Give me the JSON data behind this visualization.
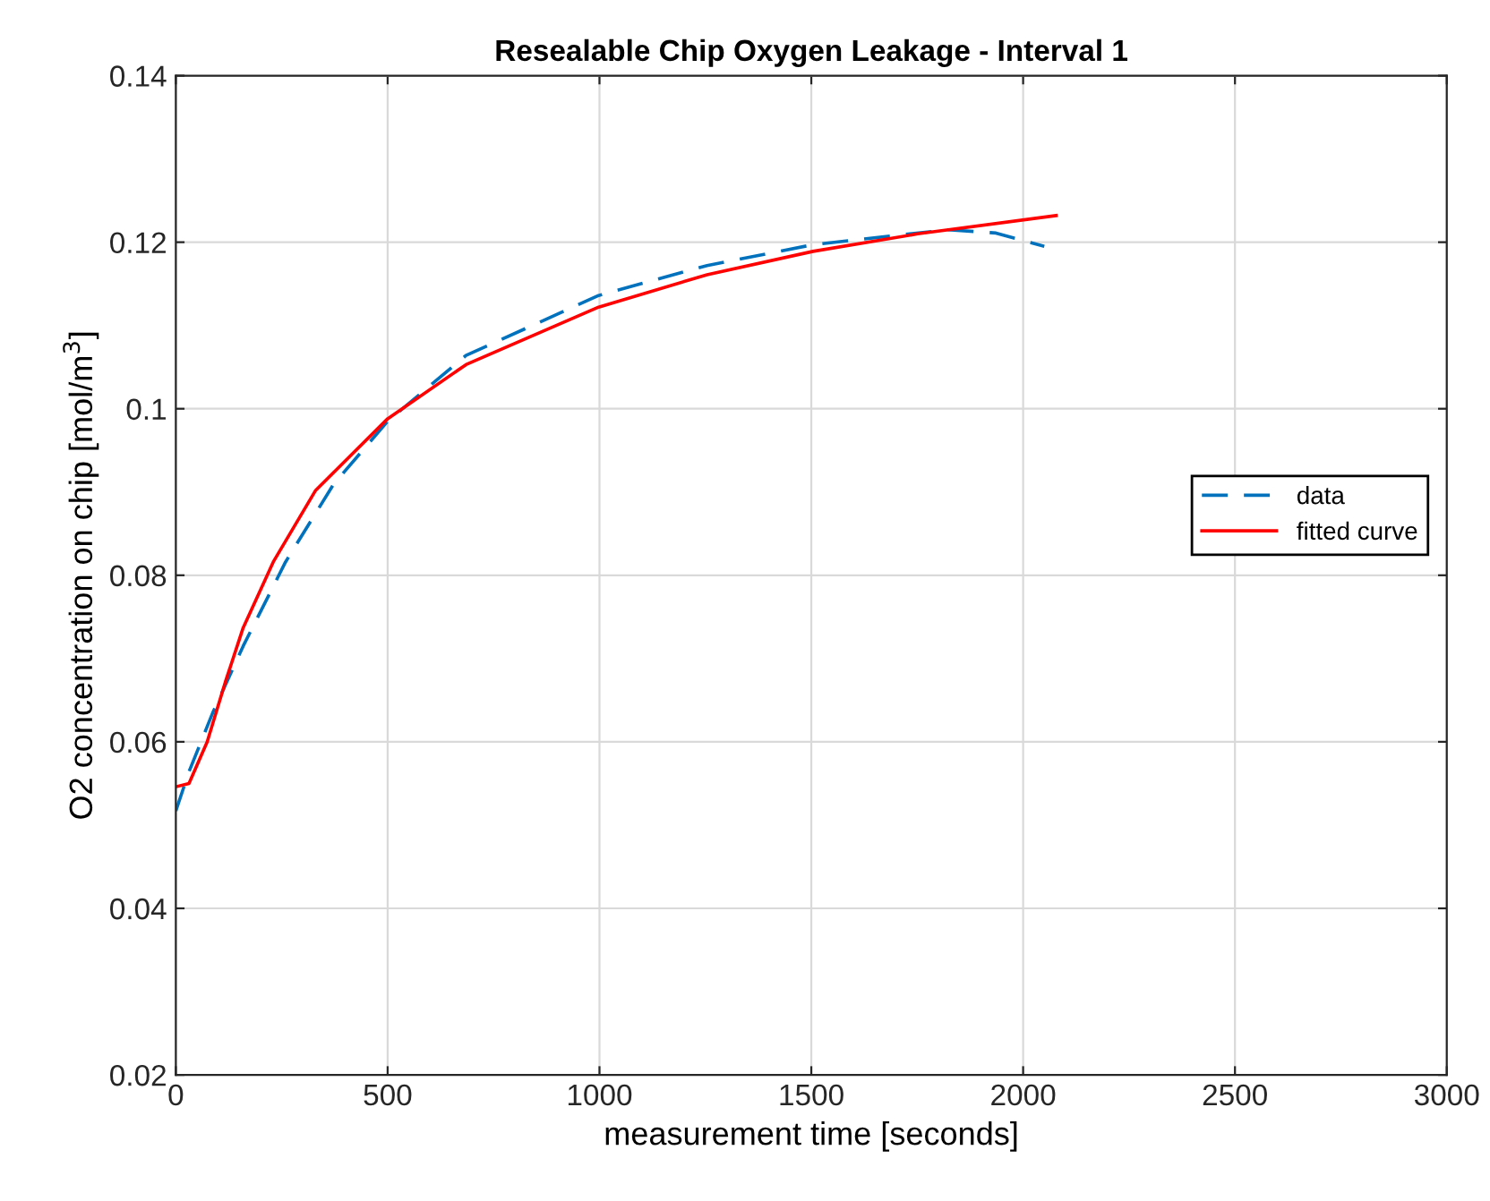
{
  "chart_data": {
    "type": "line",
    "title": "Resealable Chip Oxygen Leakage - Interval 1",
    "xlabel": "measurement time [seconds]",
    "ylabel": "O2 concentration on chip [mol/m$^{3}$]",
    "xlim": [
      0,
      3000
    ],
    "xticks": [
      0,
      500,
      1000,
      1500,
      2000,
      2500,
      3000
    ],
    "ylim": [
      0.02,
      0.14
    ],
    "yticks": [
      0.02,
      0.04,
      0.06,
      0.08,
      0.1,
      0.12,
      0.14
    ],
    "grid": true,
    "legend": "right",
    "series": [
      {
        "name": "data",
        "color": "#0072bd",
        "line_style": "dashed",
        "x": [
          0,
          31,
          88,
          159,
          259,
          372,
          500,
          685,
          998,
          1254,
          1504,
          1822,
          1936,
          2050
        ],
        "values": [
          0.0517,
          0.0564,
          0.0636,
          0.0715,
          0.0816,
          0.0909,
          0.0985,
          0.1064,
          0.1136,
          0.1172,
          0.1197,
          0.1215,
          0.1211,
          0.1195
        ]
      },
      {
        "name": "fitted curve",
        "color": "#ff0000",
        "line_style": "solid",
        "x": [
          0,
          31,
          74,
          117,
          159,
          230,
          330,
          500,
          685,
          998,
          1254,
          1504,
          1751,
          2078
        ],
        "values": [
          0.0546,
          0.055,
          0.06,
          0.0672,
          0.0737,
          0.0816,
          0.0902,
          0.0988,
          0.1053,
          0.1122,
          0.1161,
          0.1189,
          0.121,
          0.1232
        ]
      }
    ]
  }
}
